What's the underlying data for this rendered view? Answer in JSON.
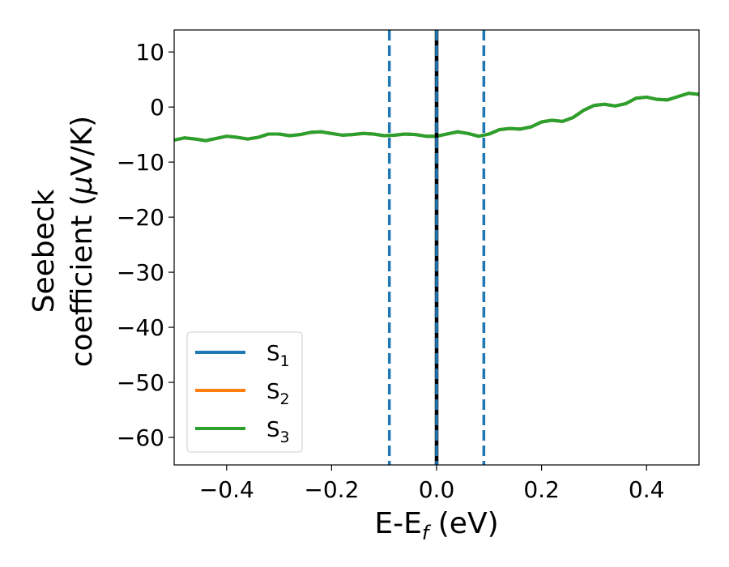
{
  "chart_data": {
    "type": "line",
    "xlabel": {
      "main": "E-E",
      "sub": "f",
      "tail": " (eV)"
    },
    "ylabel": {
      "line1": "Seebeck",
      "line2_pre": "coefficient  (",
      "line2_mu": "μ",
      "line2_post": "V/K)"
    },
    "xlim": [
      -0.5,
      0.5
    ],
    "ylim": [
      -65,
      14
    ],
    "xticks": [
      -0.4,
      -0.2,
      0.0,
      0.2,
      0.4
    ],
    "xtick_labels": [
      "−0.4",
      "−0.2",
      "0.0",
      "0.2",
      "0.4"
    ],
    "yticks": [
      10,
      0,
      -10,
      -20,
      -30,
      -40,
      -50,
      -60
    ],
    "ytick_labels": [
      "10",
      "0",
      "−10",
      "−20",
      "−30",
      "−40",
      "−50",
      "−60"
    ],
    "vlines": [
      {
        "x": -0.09,
        "style": "dashed",
        "color": "#1f77b4"
      },
      {
        "x": 0.0,
        "style": "solid",
        "color": "#000000"
      },
      {
        "x": 0.0,
        "style": "dashed",
        "color": "#1f77b4"
      },
      {
        "x": 0.09,
        "style": "dashed",
        "color": "#1f77b4"
      }
    ],
    "x": [
      -0.5,
      -0.48,
      -0.46,
      -0.44,
      -0.42,
      -0.4,
      -0.38,
      -0.36,
      -0.34,
      -0.32,
      -0.3,
      -0.28,
      -0.26,
      -0.24,
      -0.22,
      -0.2,
      -0.18,
      -0.16,
      -0.14,
      -0.12,
      -0.1,
      -0.08,
      -0.06,
      -0.04,
      -0.02,
      0.0,
      0.02,
      0.04,
      0.06,
      0.08,
      0.1,
      0.12,
      0.14,
      0.16,
      0.18,
      0.2,
      0.22,
      0.24,
      0.26,
      0.28,
      0.3,
      0.32,
      0.34,
      0.36,
      0.38,
      0.4,
      0.42,
      0.44,
      0.46,
      0.48,
      0.5
    ],
    "series": [
      {
        "name": "S",
        "sub": "1",
        "color": "#1f77b4",
        "values": [
          -6.0,
          -5.6,
          -5.8,
          -6.1,
          -5.7,
          -5.3,
          -5.5,
          -5.8,
          -5.5,
          -4.9,
          -4.9,
          -5.2,
          -5.0,
          -4.6,
          -4.5,
          -4.8,
          -5.1,
          -5.0,
          -4.8,
          -4.9,
          -5.2,
          -5.1,
          -4.9,
          -5.0,
          -5.3,
          -5.3,
          -4.9,
          -4.5,
          -4.8,
          -5.3,
          -4.9,
          -4.1,
          -3.9,
          -4.0,
          -3.6,
          -2.7,
          -2.4,
          -2.6,
          -1.9,
          -0.6,
          0.3,
          0.5,
          0.2,
          0.6,
          1.6,
          1.8,
          1.4,
          1.3,
          1.9,
          2.5,
          2.3
        ]
      },
      {
        "name": "S",
        "sub": "2",
        "color": "#ff7f0e",
        "values": [
          -6.0,
          -5.6,
          -5.8,
          -6.1,
          -5.7,
          -5.3,
          -5.5,
          -5.8,
          -5.5,
          -4.9,
          -4.9,
          -5.2,
          -5.0,
          -4.6,
          -4.5,
          -4.8,
          -5.1,
          -5.0,
          -4.8,
          -4.9,
          -5.2,
          -5.1,
          -4.9,
          -5.0,
          -5.3,
          -5.3,
          -4.9,
          -4.5,
          -4.8,
          -5.3,
          -4.9,
          -4.1,
          -3.9,
          -4.0,
          -3.6,
          -2.7,
          -2.4,
          -2.6,
          -1.9,
          -0.6,
          0.3,
          0.5,
          0.2,
          0.6,
          1.6,
          1.8,
          1.4,
          1.3,
          1.9,
          2.5,
          2.3
        ]
      },
      {
        "name": "S",
        "sub": "3",
        "color": "#2ca02c",
        "values": [
          -6.0,
          -5.6,
          -5.8,
          -6.1,
          -5.7,
          -5.3,
          -5.5,
          -5.8,
          -5.5,
          -4.9,
          -4.9,
          -5.2,
          -5.0,
          -4.6,
          -4.5,
          -4.8,
          -5.1,
          -5.0,
          -4.8,
          -4.9,
          -5.2,
          -5.1,
          -4.9,
          -5.0,
          -5.3,
          -5.3,
          -4.9,
          -4.5,
          -4.8,
          -5.3,
          -4.9,
          -4.1,
          -3.9,
          -4.0,
          -3.6,
          -2.7,
          -2.4,
          -2.6,
          -1.9,
          -0.6,
          0.3,
          0.5,
          0.2,
          0.6,
          1.6,
          1.8,
          1.4,
          1.3,
          1.9,
          2.5,
          2.3
        ]
      }
    ],
    "legend": {
      "placement": "lower-left"
    },
    "grid": false
  }
}
